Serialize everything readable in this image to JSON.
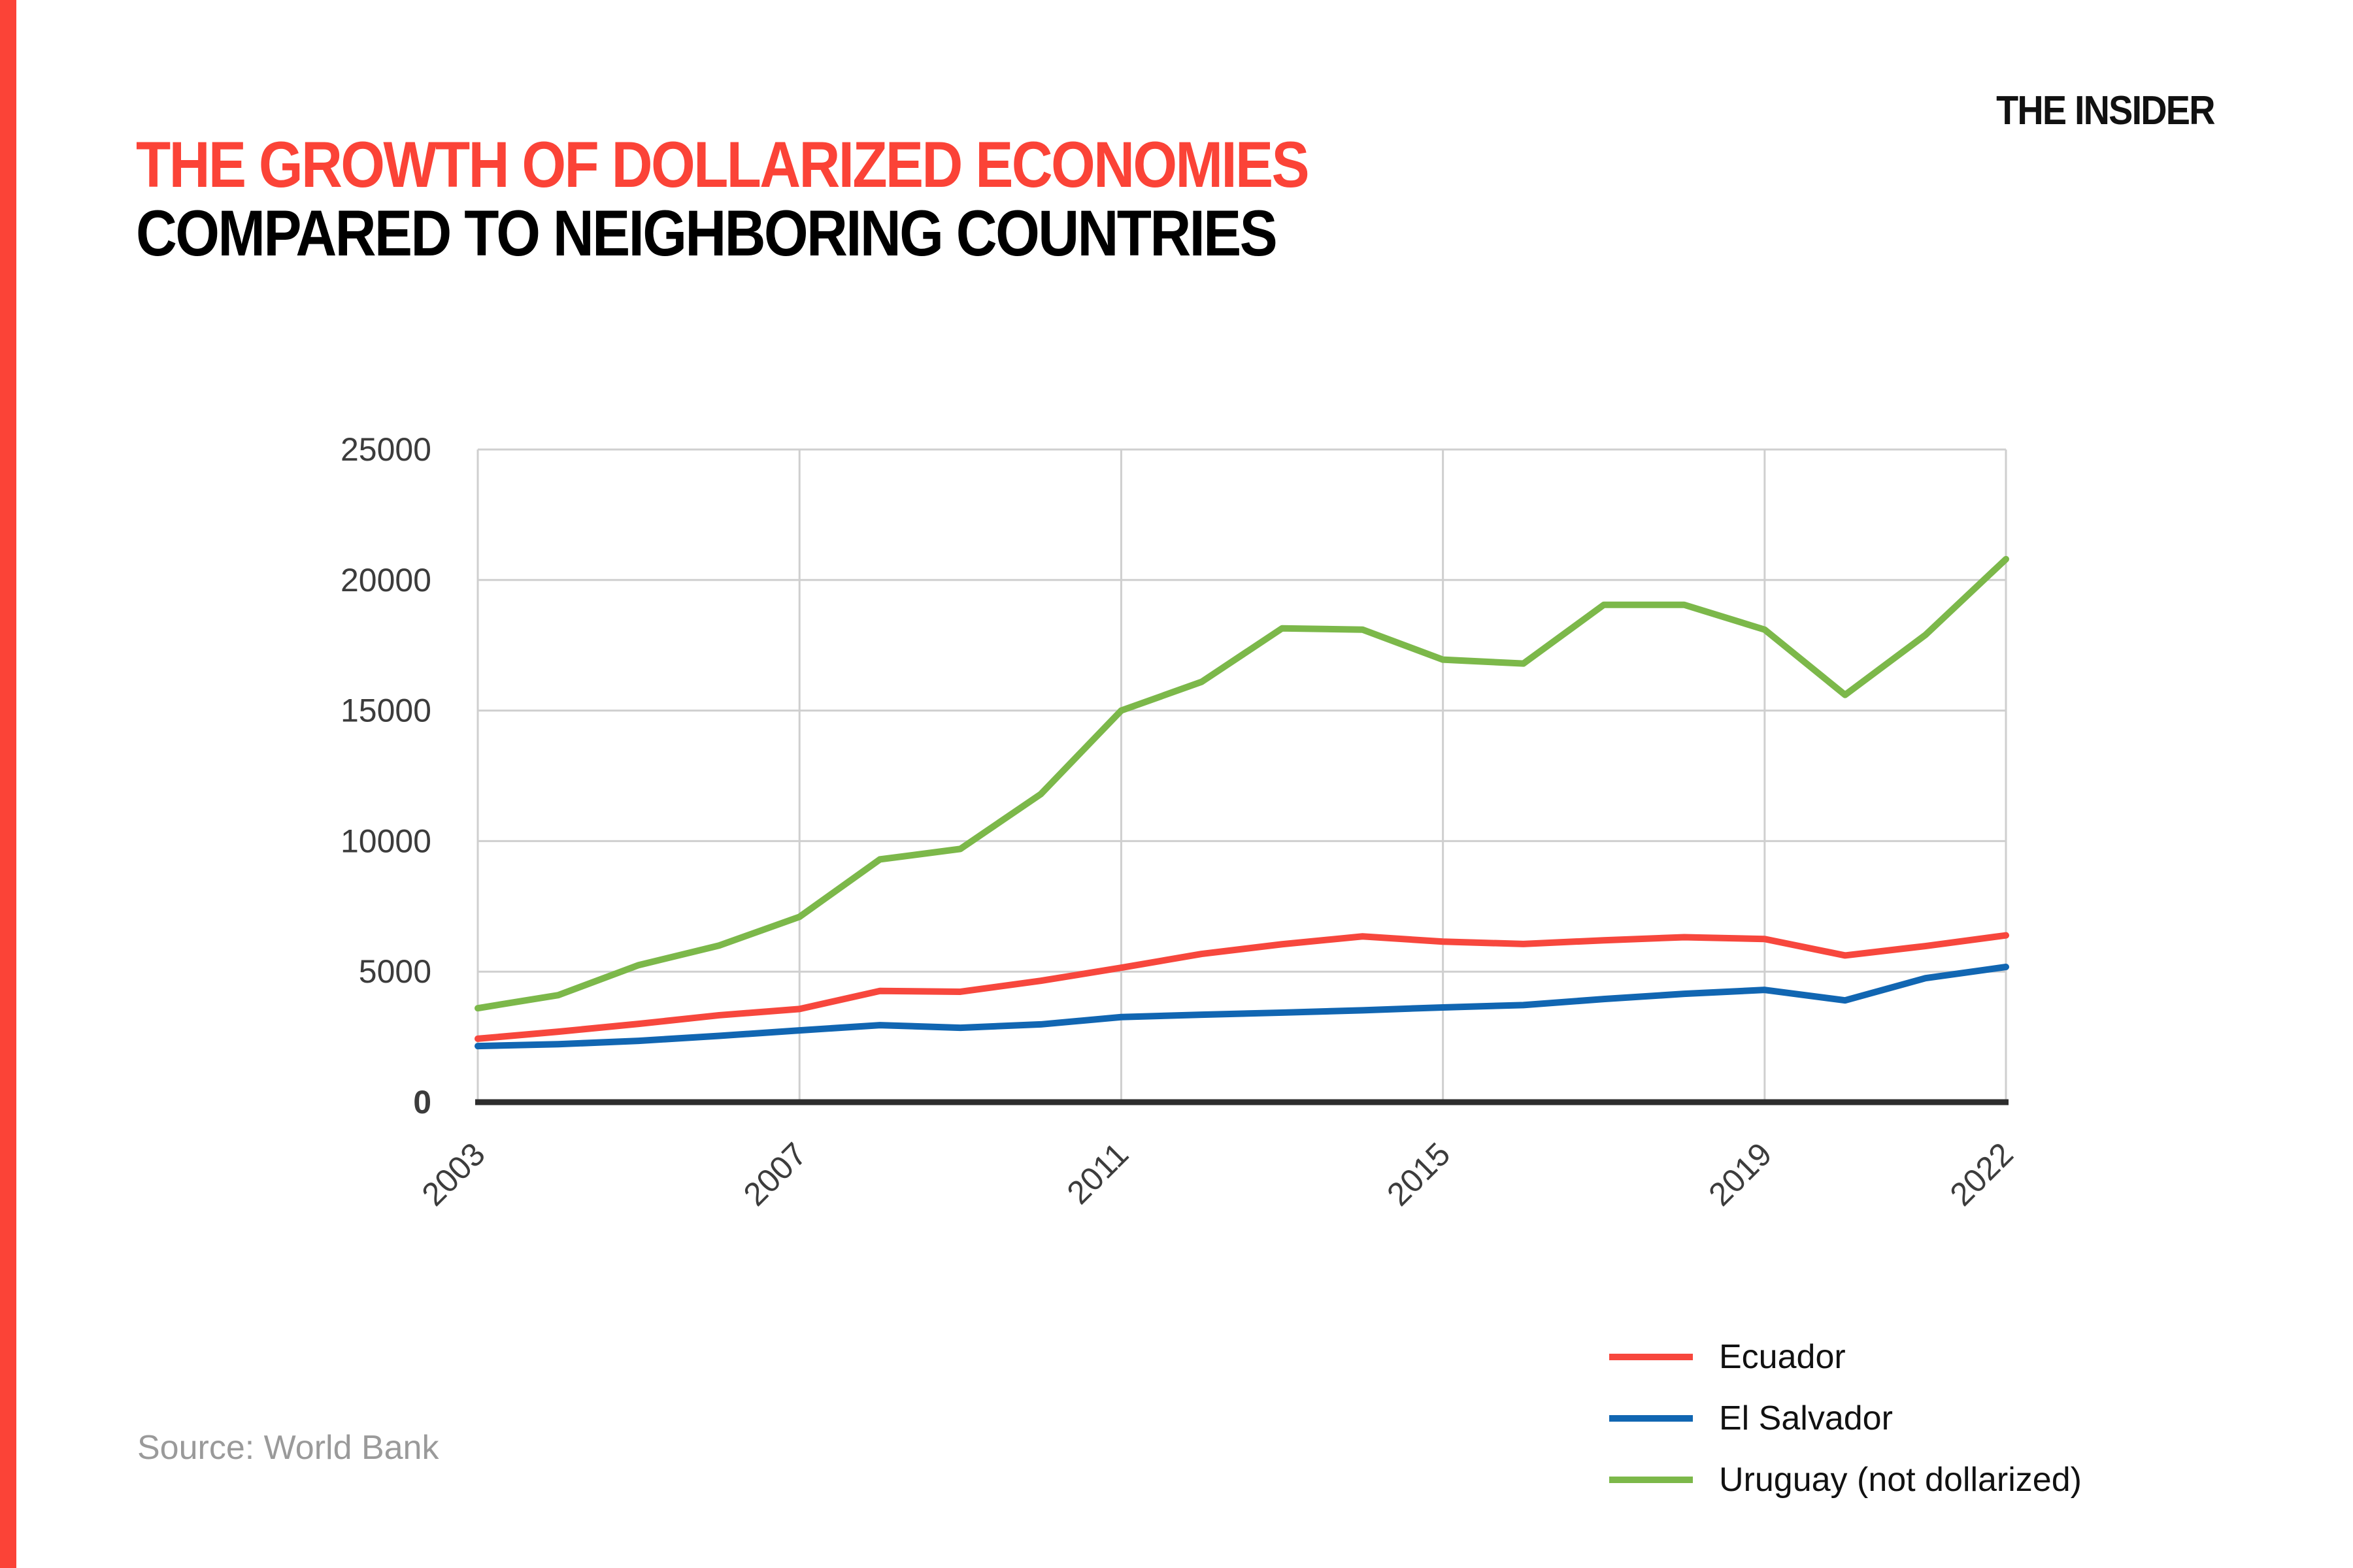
{
  "page": {
    "logo": "THE INSIDER",
    "title_line1": "THE GROWTH OF DOLLARIZED ECONOMIES",
    "title_line2": "COMPARED TO NEIGHBORING COUNTRIES",
    "title_color": "#fb4337",
    "accent_color": "#fb4337",
    "source": "Source: World Bank"
  },
  "chart_data": {
    "type": "line",
    "title": "",
    "xlabel": "",
    "ylabel": "",
    "x": [
      2003,
      2004,
      2005,
      2006,
      2007,
      2008,
      2009,
      2010,
      2011,
      2012,
      2013,
      2014,
      2015,
      2016,
      2017,
      2018,
      2019,
      2020,
      2021,
      2022
    ],
    "xticks": [
      2003,
      2007,
      2011,
      2015,
      2019,
      2022
    ],
    "yticks": [
      0,
      5000,
      10000,
      15000,
      20000,
      25000
    ],
    "ylim": [
      0,
      25000
    ],
    "grid": true,
    "legend_position": "bottom-right",
    "gridline_color": "#cfcfcf",
    "axis_line_color": "#2d2d2d",
    "tick_label_color": "#3c3c3c",
    "series": [
      {
        "name": "Ecuador",
        "color": "#f7473d",
        "values": [
          2430,
          2700,
          3000,
          3330,
          3570,
          4260,
          4230,
          4650,
          5150,
          5680,
          6050,
          6350,
          6150,
          6060,
          6200,
          6320,
          6250,
          5620,
          5980,
          6390
        ]
      },
      {
        "name": "El Salvador",
        "color": "#1166b2",
        "values": [
          2150,
          2220,
          2350,
          2540,
          2750,
          2950,
          2850,
          2980,
          3260,
          3350,
          3430,
          3520,
          3630,
          3720,
          3950,
          4150,
          4300,
          3900,
          4750,
          5180
        ]
      },
      {
        "name": "Uruguay (not dollarized)",
        "color": "#7cb84a",
        "values": [
          3600,
          4100,
          5250,
          6000,
          7100,
          9300,
          9700,
          11800,
          15000,
          16100,
          18150,
          18100,
          16950,
          16800,
          19050,
          19050,
          18100,
          15600,
          17900,
          20800
        ]
      }
    ]
  }
}
